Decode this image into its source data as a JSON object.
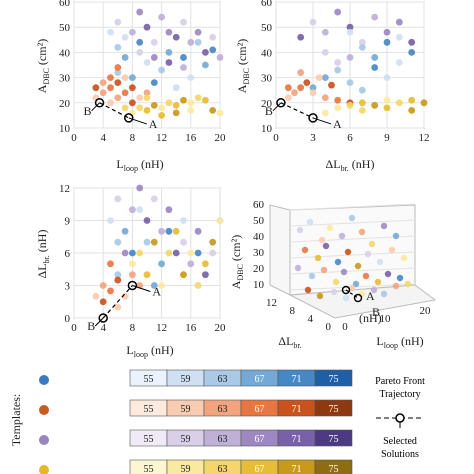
{
  "chart_data": [
    {
      "type": "scatter",
      "xlabel": "L",
      "xlabel_sub": "loop",
      "xlabel_unit": " (nH)",
      "ylabel": "A",
      "ylabel_sub": "DBC",
      "ylabel_unit": " (cm²)",
      "xlim": [
        0,
        20
      ],
      "ylim": [
        10,
        60
      ],
      "xticks": [
        "0",
        "4",
        "8",
        "12",
        "16",
        "20"
      ],
      "yticks": [
        "10",
        "20",
        "30",
        "40",
        "50",
        "60"
      ],
      "points": {
        "blue": [
          [
            5,
            48
          ],
          [
            6,
            42
          ],
          [
            7,
            38
          ],
          [
            9,
            44
          ],
          [
            10,
            36
          ],
          [
            12,
            33
          ],
          [
            13,
            40
          ],
          [
            15,
            38
          ],
          [
            16,
            30
          ],
          [
            17,
            44
          ],
          [
            8,
            30
          ],
          [
            11,
            28
          ],
          [
            14,
            26
          ],
          [
            6,
            32
          ],
          [
            18,
            35
          ],
          [
            19,
            41
          ],
          [
            7,
            46
          ]
        ],
        "orange": [
          [
            3,
            22
          ],
          [
            4,
            24
          ],
          [
            5,
            26
          ],
          [
            6,
            28
          ],
          [
            5,
            20
          ],
          [
            6,
            22
          ],
          [
            7,
            24
          ],
          [
            8,
            20
          ],
          [
            7,
            30
          ],
          [
            4,
            28
          ],
          [
            6,
            34
          ],
          [
            8,
            26
          ],
          [
            9,
            22
          ],
          [
            10,
            24
          ],
          [
            5,
            30
          ],
          [
            3,
            26
          ]
        ],
        "purple": [
          [
            6,
            52
          ],
          [
            8,
            48
          ],
          [
            9,
            56
          ],
          [
            10,
            50
          ],
          [
            11,
            44
          ],
          [
            12,
            54
          ],
          [
            13,
            48
          ],
          [
            14,
            46
          ],
          [
            15,
            52
          ],
          [
            16,
            44
          ],
          [
            17,
            48
          ],
          [
            18,
            40
          ],
          [
            19,
            46
          ],
          [
            20,
            38
          ],
          [
            11,
            38
          ],
          [
            13,
            36
          ],
          [
            9,
            40
          ],
          [
            15,
            34
          ]
        ],
        "yellow": [
          [
            8,
            16
          ],
          [
            9,
            18
          ],
          [
            10,
            17
          ],
          [
            11,
            19
          ],
          [
            12,
            18
          ],
          [
            13,
            20
          ],
          [
            14,
            19
          ],
          [
            15,
            21
          ],
          [
            16,
            20
          ],
          [
            17,
            22
          ],
          [
            18,
            21
          ],
          [
            19,
            17
          ],
          [
            20,
            16
          ],
          [
            10,
            22
          ],
          [
            12,
            15
          ],
          [
            14,
            16
          ],
          [
            16,
            17
          ],
          [
            7,
            18
          ]
        ]
      },
      "pareto": [
        [
          3.5,
          20
        ],
        [
          7.5,
          14
        ]
      ],
      "annotations": [
        "B",
        "A"
      ]
    },
    {
      "type": "scatter",
      "xlabel": "ΔL",
      "xlabel_sub": "br.",
      "xlabel_unit": " (nH)",
      "ylabel": "A",
      "ylabel_sub": "DBC",
      "ylabel_unit": " (cm²)",
      "xlim": [
        0,
        12
      ],
      "ylim": [
        10,
        60
      ],
      "xticks": [
        "0",
        "3",
        "6",
        "9",
        "12"
      ],
      "yticks": [
        "10",
        "20",
        "30",
        "40",
        "50",
        "60"
      ],
      "points": {
        "blue": [
          [
            6,
            48
          ],
          [
            7,
            42
          ],
          [
            8,
            38
          ],
          [
            9,
            44
          ],
          [
            10,
            36
          ],
          [
            5,
            33
          ],
          [
            4,
            30
          ],
          [
            11,
            40
          ],
          [
            9,
            30
          ],
          [
            6,
            28
          ],
          [
            3,
            26
          ],
          [
            8,
            34
          ],
          [
            10,
            46
          ],
          [
            7,
            25
          ]
        ],
        "orange": [
          [
            1,
            22
          ],
          [
            1.5,
            24
          ],
          [
            2,
            26
          ],
          [
            2.5,
            28
          ],
          [
            3,
            24
          ],
          [
            4,
            22
          ],
          [
            5,
            21
          ],
          [
            6,
            20
          ],
          [
            3.5,
            30
          ],
          [
            2,
            32
          ],
          [
            1,
            26
          ],
          [
            4.5,
            27
          ]
        ],
        "purple": [
          [
            3,
            52
          ],
          [
            4,
            48
          ],
          [
            5,
            56
          ],
          [
            6,
            50
          ],
          [
            7,
            44
          ],
          [
            8,
            54
          ],
          [
            9,
            48
          ],
          [
            2,
            46
          ],
          [
            4,
            40
          ],
          [
            6,
            38
          ],
          [
            10,
            52
          ],
          [
            11,
            44
          ],
          [
            5,
            36
          ]
        ],
        "yellow": [
          [
            5,
            18
          ],
          [
            6,
            19
          ],
          [
            7,
            20
          ],
          [
            8,
            19
          ],
          [
            9,
            21
          ],
          [
            10,
            20
          ],
          [
            11,
            21
          ],
          [
            12,
            20
          ],
          [
            4,
            16
          ],
          [
            7,
            17
          ],
          [
            9,
            18
          ],
          [
            11,
            17
          ]
        ]
      },
      "pareto": [
        [
          0.4,
          20
        ],
        [
          3,
          14
        ]
      ],
      "annotations": [
        "B",
        "A"
      ]
    },
    {
      "type": "scatter",
      "xlabel": "L",
      "xlabel_sub": "loop",
      "xlabel_unit": " (nH)",
      "ylabel": "ΔL",
      "ylabel_sub": "br.",
      "ylabel_unit": " (nH)",
      "xlim": [
        0,
        20
      ],
      "ylim": [
        0,
        12
      ],
      "xticks": [
        "0",
        "4",
        "8",
        "12",
        "16",
        "20"
      ],
      "yticks": [
        "0",
        "3",
        "6",
        "9",
        "12"
      ],
      "points": {
        "blue": [
          [
            5,
            9
          ],
          [
            6,
            7
          ],
          [
            7,
            8
          ],
          [
            8,
            6
          ],
          [
            9,
            10
          ],
          [
            10,
            7
          ],
          [
            12,
            5
          ],
          [
            13,
            8
          ],
          [
            15,
            9
          ],
          [
            6,
            4
          ],
          [
            11,
            3
          ],
          [
            17,
            6
          ]
        ],
        "orange": [
          [
            3,
            2
          ],
          [
            4,
            3
          ],
          [
            5,
            2.5
          ],
          [
            6,
            3.5
          ],
          [
            7,
            2
          ],
          [
            8,
            4
          ],
          [
            5,
            5
          ],
          [
            4,
            1.5
          ],
          [
            6,
            1
          ],
          [
            9,
            3
          ]
        ],
        "purple": [
          [
            6,
            11
          ],
          [
            8,
            10
          ],
          [
            9,
            12
          ],
          [
            10,
            9
          ],
          [
            11,
            11
          ],
          [
            12,
            8
          ],
          [
            13,
            10
          ],
          [
            14,
            6
          ],
          [
            15,
            7
          ],
          [
            16,
            5
          ],
          [
            17,
            8
          ],
          [
            18,
            4
          ],
          [
            19,
            6
          ],
          [
            20,
            9
          ],
          [
            7,
            6
          ]
        ],
        "yellow": [
          [
            8,
            5
          ],
          [
            9,
            6
          ],
          [
            10,
            4
          ],
          [
            11,
            7
          ],
          [
            12,
            3
          ],
          [
            13,
            6
          ],
          [
            14,
            8
          ],
          [
            15,
            4
          ],
          [
            16,
            6
          ],
          [
            17,
            3
          ],
          [
            18,
            5
          ],
          [
            19,
            7
          ],
          [
            20,
            9
          ]
        ]
      },
      "pareto": [
        [
          4,
          0
        ],
        [
          8,
          3
        ]
      ],
      "annotations": [
        "B",
        "A"
      ]
    }
  ],
  "plot3d": {
    "ylabel": "A",
    "ylabel_sub": "DBC",
    "ylabel_unit": " (cm²)",
    "zticks": [
      "10",
      "20",
      "30",
      "40",
      "50",
      "60"
    ],
    "xlabel": "L",
    "xlabel_sub": "loop",
    "xlabel_unit": " (nH)",
    "xticks": [
      "0",
      "10",
      "20"
    ],
    "dlabel": "ΔL",
    "dlabel_sub": "br.",
    "dlabel_unit": " (nH)",
    "dticks": [
      "0",
      "4",
      "8",
      "12"
    ],
    "annotations": [
      "A",
      "B"
    ]
  },
  "legend": {
    "templates_label": "Templates:",
    "values": [
      "55",
      "59",
      "63",
      "67",
      "71",
      "75"
    ],
    "rows": [
      {
        "marker": "#3a7bbf",
        "colors": [
          "#eaf2fb",
          "#cfe0f2",
          "#a9c9e6",
          "#74a9d6",
          "#4688c3",
          "#1f5fa3"
        ]
      },
      {
        "marker": "#c8591f",
        "colors": [
          "#fdeadd",
          "#f9cbb0",
          "#f2a47e",
          "#e67743",
          "#c9531c",
          "#8e3a10"
        ]
      },
      {
        "marker": "#9a86bf",
        "colors": [
          "#efeaf5",
          "#d9cfe8",
          "#bfb0d8",
          "#9d88c2",
          "#7861a8",
          "#4d3a82"
        ]
      },
      {
        "marker": "#e4b826",
        "colors": [
          "#fdf6d2",
          "#fae9a0",
          "#f4d66a",
          "#e7bd35",
          "#c99a1a",
          "#8e6c12"
        ]
      }
    ],
    "pareto_label_1": "Pareto Front",
    "pareto_label_2": "Trajectory",
    "selected_label_1": "Selected",
    "selected_label_2": "Solutions"
  },
  "colors": {
    "blue": [
      "#cfe0f2",
      "#a9c9e6",
      "#74a9d6",
      "#4688c3"
    ],
    "orange": [
      "#f9cbb0",
      "#f2a47e",
      "#e67743",
      "#c9531c"
    ],
    "purple": [
      "#d9cfe8",
      "#bfb0d8",
      "#9d88c2",
      "#7861a8"
    ],
    "yellow": [
      "#fae9a0",
      "#f4d66a",
      "#e7bd35",
      "#c99a1a"
    ]
  }
}
